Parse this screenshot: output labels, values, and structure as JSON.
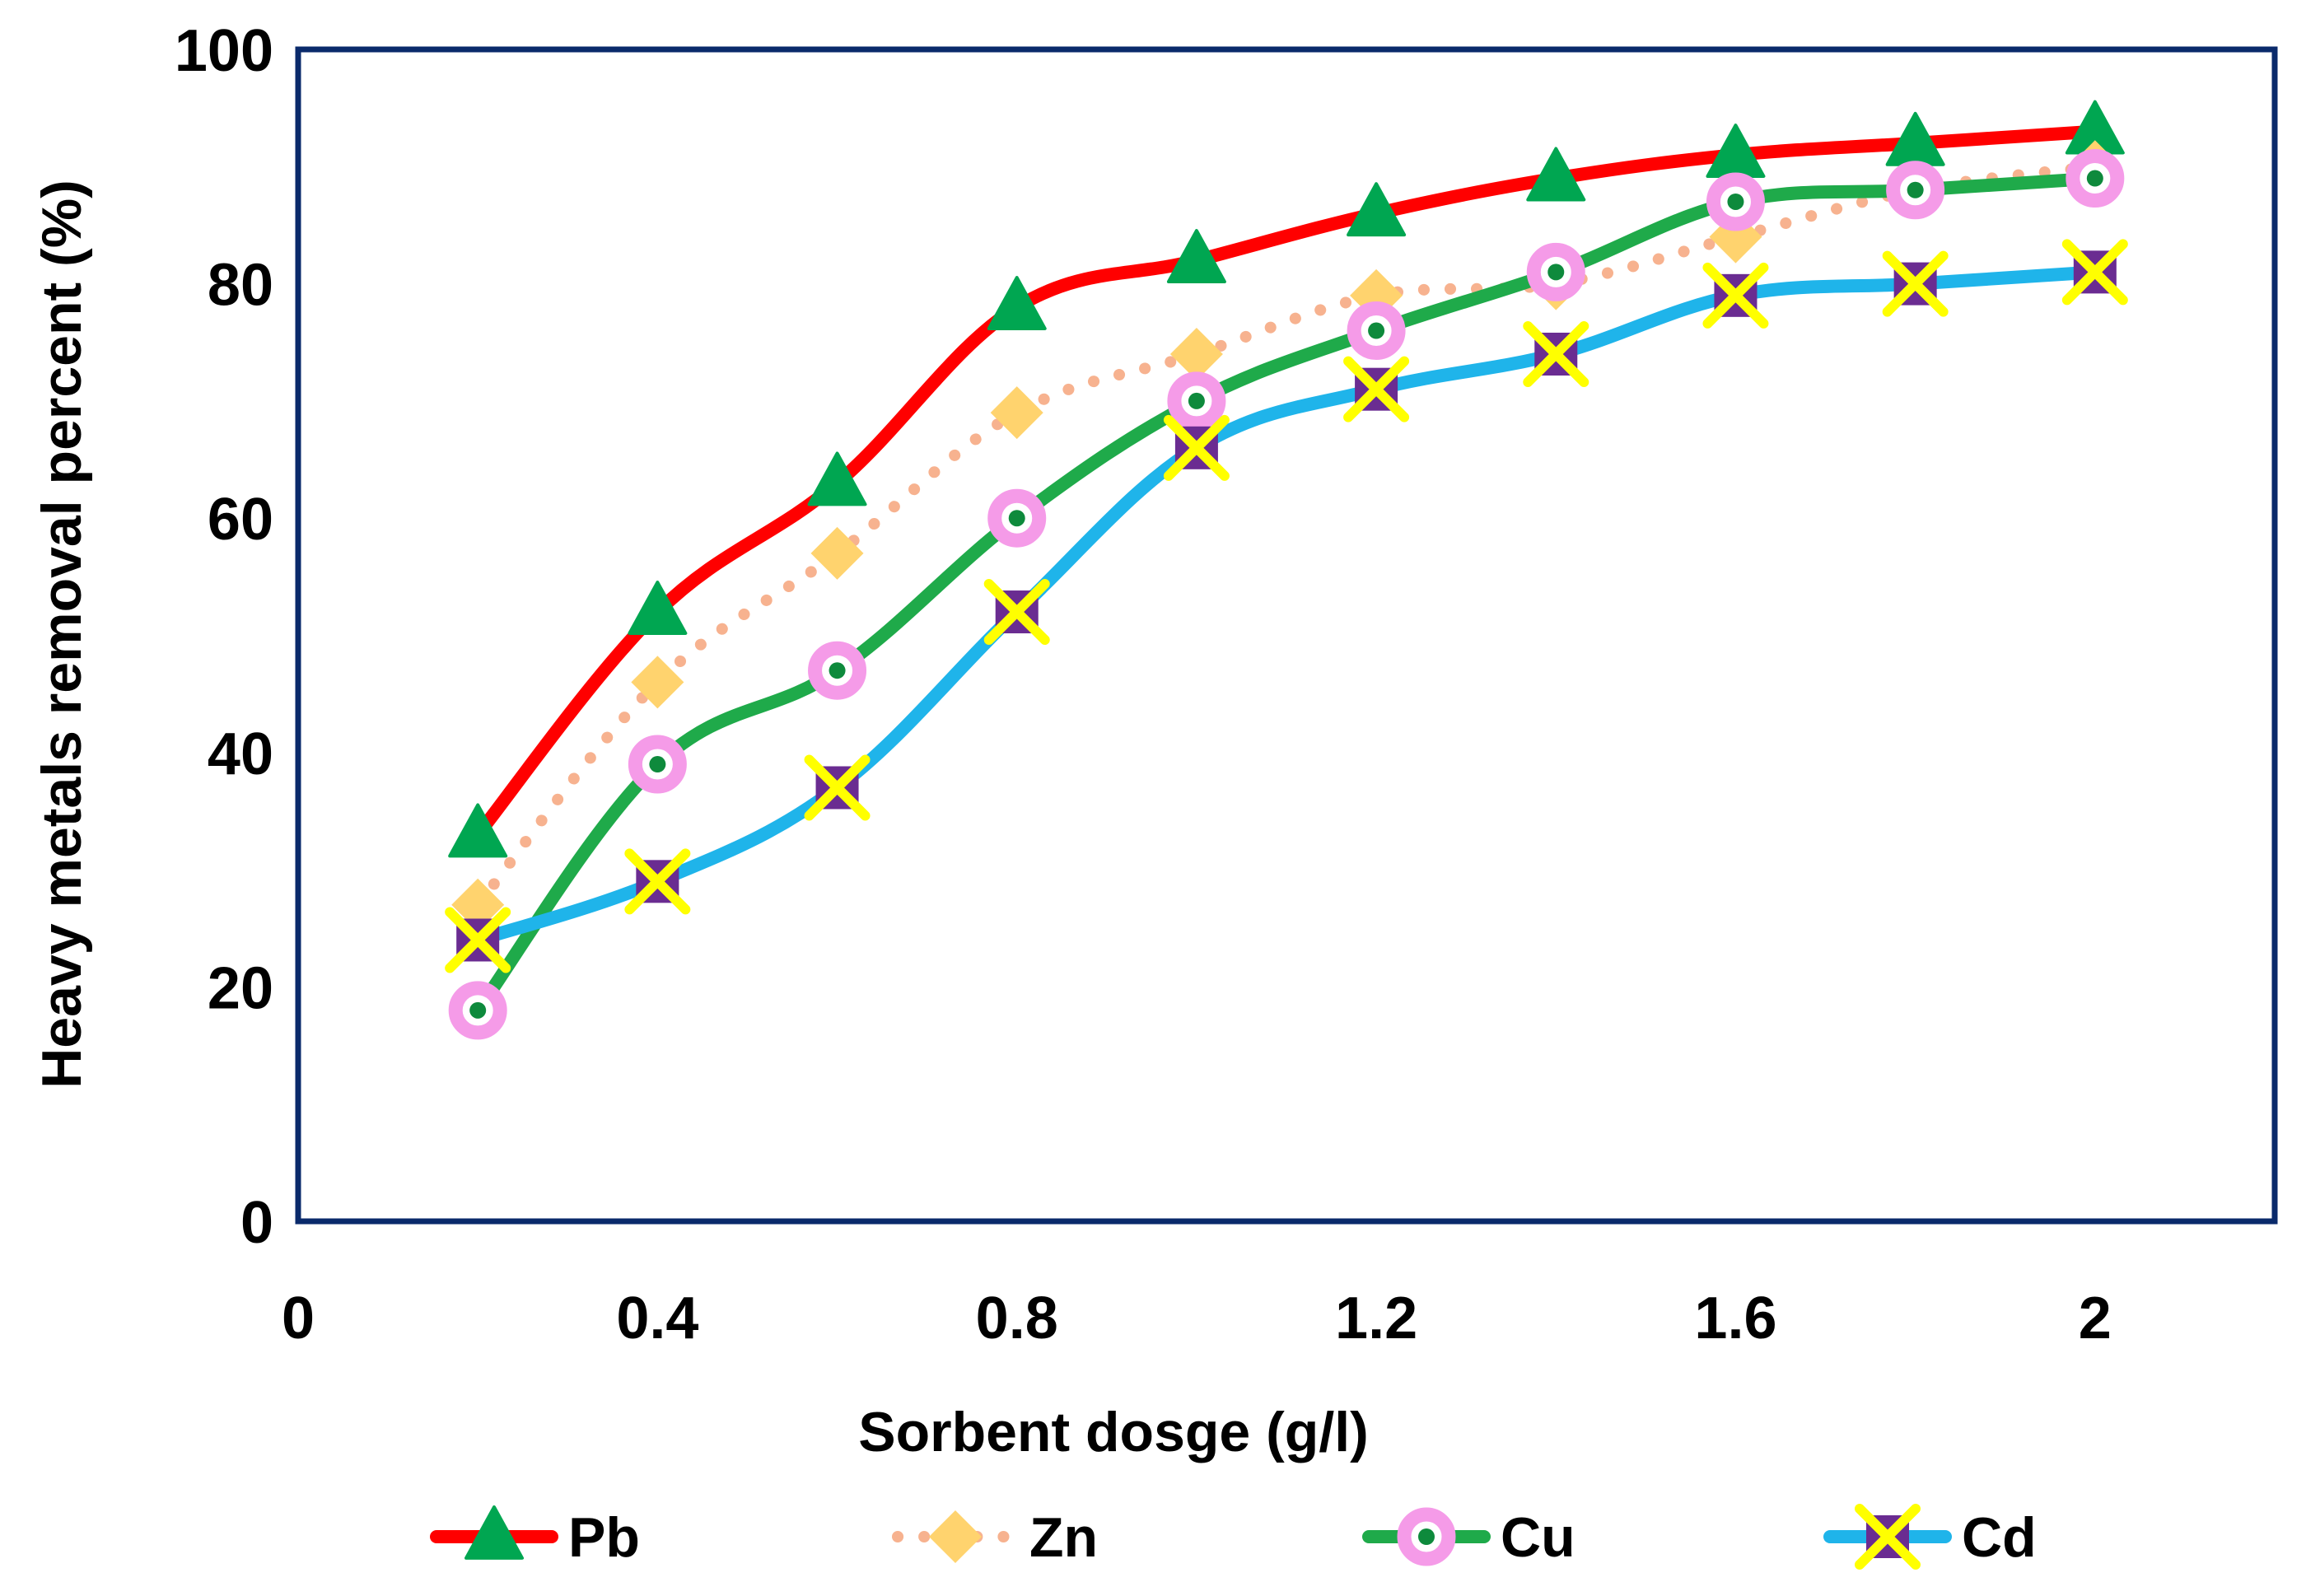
{
  "chart_data": {
    "type": "line",
    "title": "",
    "xlabel": "Sorbent dosge (g/l)",
    "ylabel": "Heavy metals removal percent (%)",
    "xlim": [
      0,
      2.2
    ],
    "ylim": [
      0,
      100
    ],
    "x_ticks": [
      0,
      0.4,
      0.8,
      1.2,
      1.6,
      2
    ],
    "x_tick_labels": [
      "0",
      "0.4",
      "0.8",
      "1.2",
      "1.6",
      "2"
    ],
    "y_ticks": [
      0,
      20,
      40,
      60,
      80,
      100
    ],
    "y_tick_labels": [
      "0",
      "20",
      "40",
      "60",
      "80",
      "100"
    ],
    "grid": false,
    "legend_position": "bottom",
    "x": [
      0.2,
      0.4,
      0.6,
      0.8,
      1.0,
      1.2,
      1.4,
      1.6,
      1.8,
      2.0
    ],
    "series": [
      {
        "name": "Pb",
        "line_color": "#ff0000",
        "line_style": "solid",
        "marker": "triangle",
        "marker_color": "#00a651",
        "values": [
          33,
          52,
          63,
          78,
          82,
          86,
          89,
          91,
          92,
          93
        ]
      },
      {
        "name": "Zn",
        "line_color": "#f7b28f",
        "line_style": "dotted",
        "marker": "diamond",
        "marker_color": "#ffd36e",
        "values": [
          27,
          46,
          57,
          69,
          74,
          79,
          80,
          84,
          88,
          90
        ]
      },
      {
        "name": "Cu",
        "line_color": "#1faa4a",
        "line_style": "solid",
        "marker": "circle",
        "marker_color": "#f59be8",
        "marker_center_color": "#0e8a3c",
        "values": [
          18,
          39,
          47,
          60,
          70,
          76,
          81,
          87,
          88,
          89
        ]
      },
      {
        "name": "Cd",
        "line_color": "#1fb4ea",
        "line_style": "solid",
        "marker": "x-square",
        "marker_color": "#6a2c91",
        "marker_cross_color": "#ffff00",
        "values": [
          24,
          29,
          37,
          52,
          66,
          71,
          74,
          79,
          80,
          81
        ]
      }
    ],
    "frame_color": "#0a2a6b"
  }
}
